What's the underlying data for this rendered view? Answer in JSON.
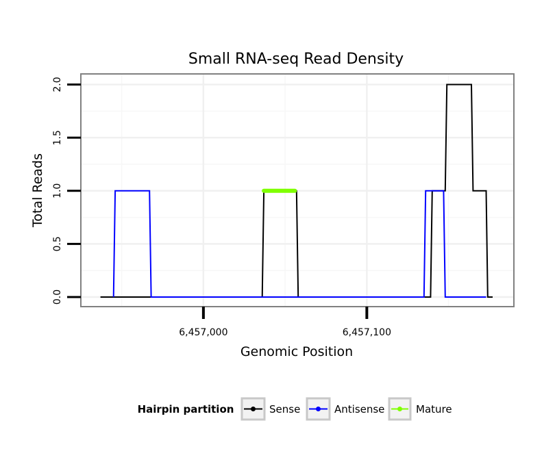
{
  "chart_data": {
    "type": "line",
    "title": "Small RNA-seq Read Density",
    "xlabel": "Genomic Position",
    "ylabel": "Total Reads",
    "xlim": [
      6456925,
      6457190
    ],
    "ylim": [
      -0.09,
      2.1
    ],
    "x_ticks": [
      {
        "value": 6457000,
        "label": "6,457,000"
      },
      {
        "value": 6457100,
        "label": "6,457,100"
      }
    ],
    "y_ticks": [
      {
        "value": 0.0,
        "label": "0.0"
      },
      {
        "value": 0.5,
        "label": "0.5"
      },
      {
        "value": 1.0,
        "label": "1.0"
      },
      {
        "value": 1.5,
        "label": "1.5"
      },
      {
        "value": 2.0,
        "label": "2.0"
      }
    ],
    "grid": true,
    "legend": {
      "title": "Hairpin partition",
      "position": "bottom",
      "entries": [
        {
          "name": "Sense",
          "color": "#000000"
        },
        {
          "name": "Antisense",
          "color": "#0000ff"
        },
        {
          "name": "Mature",
          "color": "#7fff00"
        }
      ]
    },
    "series": [
      {
        "name": "Sense",
        "color": "#000000",
        "points": [
          [
            6456937,
            0
          ],
          [
            6457036,
            0
          ],
          [
            6457037,
            1
          ],
          [
            6457057,
            1
          ],
          [
            6457058,
            0
          ],
          [
            6457139,
            0
          ],
          [
            6457140,
            1
          ],
          [
            6457148,
            1
          ],
          [
            6457149,
            2
          ],
          [
            6457164,
            2
          ],
          [
            6457165,
            1
          ],
          [
            6457173,
            1
          ],
          [
            6457174,
            0
          ],
          [
            6457177,
            0
          ]
        ]
      },
      {
        "name": "Antisense",
        "color": "#0000ff",
        "points": [
          [
            6456945,
            0
          ],
          [
            6456946,
            1
          ],
          [
            6456967,
            1
          ],
          [
            6456968,
            0
          ],
          [
            6457135,
            0
          ],
          [
            6457136,
            1
          ],
          [
            6457147,
            1
          ],
          [
            6457148,
            0
          ],
          [
            6457173,
            0
          ]
        ]
      },
      {
        "name": "Mature",
        "color": "#7fff00",
        "points": [
          [
            6457037,
            1
          ],
          [
            6457056,
            1
          ]
        ]
      }
    ]
  }
}
